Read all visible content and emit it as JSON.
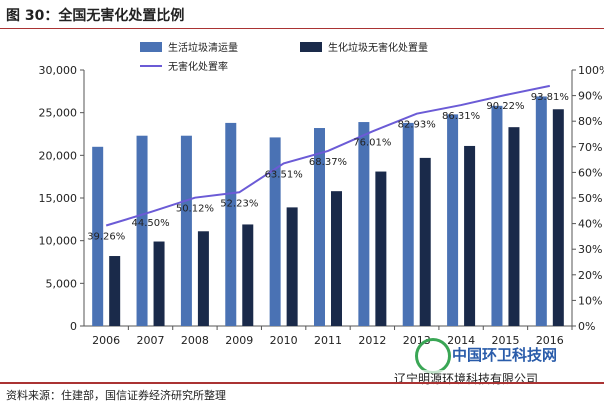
{
  "figure": {
    "title": "图 30：全国无害化处置比例",
    "source": "资料来源：住建部，国信证券经济研究所整理"
  },
  "watermark": {
    "line1": "中国环卫科技网",
    "line2": "辽宁明源环境科技有限公司"
  },
  "colors": {
    "series1": "#4a72b4",
    "series2": "#1a2a4a",
    "line": "#6b5bd6"
  },
  "chart_data": {
    "type": "bar",
    "categories": [
      "2006",
      "2007",
      "2008",
      "2009",
      "2010",
      "2011",
      "2012",
      "2013",
      "2014",
      "2015",
      "2016"
    ],
    "series": [
      {
        "name": "生活垃圾清运量",
        "type": "bar",
        "axis": "left",
        "values": [
          21000,
          22300,
          22300,
          23800,
          22100,
          23200,
          23900,
          23800,
          24800,
          25800,
          26900
        ]
      },
      {
        "name": "生化垃圾无害化处置量",
        "type": "bar",
        "axis": "left",
        "values": [
          8200,
          9900,
          11100,
          11900,
          13900,
          15800,
          18100,
          19700,
          21100,
          23300,
          25400
        ]
      },
      {
        "name": "无害化处置率",
        "type": "line",
        "axis": "right",
        "values": [
          39.26,
          44.5,
          50.12,
          52.23,
          63.51,
          68.37,
          76.01,
          82.93,
          86.31,
          90.22,
          93.81
        ],
        "labels": [
          "39.26%",
          "44.50%",
          "50.12%",
          "52.23%",
          "63.51%",
          "68.37%",
          "76.01%",
          "82.93%",
          "86.31%",
          "90.22%",
          "93.81%"
        ]
      }
    ],
    "ylim_left": [
      0,
      30000
    ],
    "yticks_left": [
      "0",
      "5,000",
      "10,000",
      "15,000",
      "20,000",
      "25,000",
      "30,000"
    ],
    "ylim_right": [
      0,
      100
    ],
    "yticks_right": [
      "0%",
      "10%",
      "20%",
      "30%",
      "40%",
      "50%",
      "60%",
      "70%",
      "80%",
      "90%",
      "100%"
    ],
    "legend_position": "top"
  }
}
